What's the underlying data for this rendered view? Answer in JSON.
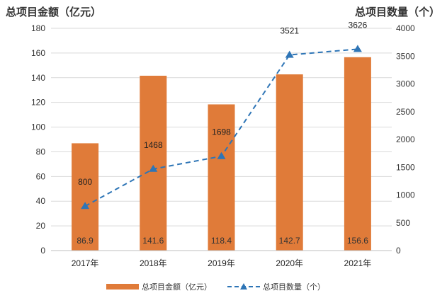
{
  "chart_data": {
    "type": "bar",
    "categories": [
      "2017年",
      "2018年",
      "2019年",
      "2020年",
      "2021年"
    ],
    "left_axis_title": "总项目金额（亿元）",
    "right_axis_title": "总项目数量（个）",
    "ylim_left": [
      0,
      180
    ],
    "yticks_left": [
      0,
      20,
      40,
      60,
      80,
      100,
      120,
      140,
      160,
      180
    ],
    "ylim_right": [
      0,
      4000
    ],
    "yticks_right": [
      0,
      500,
      1000,
      1500,
      2000,
      2500,
      3000,
      3500,
      4000
    ],
    "grid": true,
    "legend_position": "bottom",
    "series": [
      {
        "name": "总项目金额（亿元）",
        "type": "bar",
        "axis": "left",
        "color": "#E07B39",
        "values": [
          86.9,
          141.6,
          118.4,
          142.7,
          156.6
        ],
        "labels": [
          "86.9",
          "141.6",
          "118.4",
          "142.7",
          "156.6"
        ]
      },
      {
        "name": "总项目数量（个）",
        "type": "line",
        "axis": "right",
        "color": "#2E75B6",
        "line_style": "dashed",
        "marker": "triangle",
        "values": [
          800,
          1468,
          1698,
          3521,
          3626
        ],
        "labels": [
          "800",
          "1468",
          "1698",
          "3521",
          "3626"
        ]
      }
    ]
  }
}
